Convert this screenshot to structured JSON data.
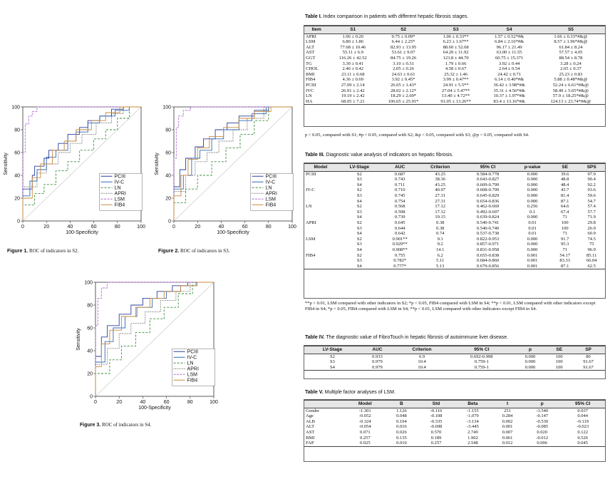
{
  "roc_common": {
    "ylabel": "Sensitivity",
    "xlabel": "100-Specificity",
    "xticks": [
      "0",
      "20",
      "40",
      "60",
      "80",
      "100"
    ],
    "yticks": [
      "0",
      "20",
      "40",
      "60",
      "80",
      "100"
    ],
    "legend": [
      "PCIII",
      "IV-C",
      "LN",
      "APRI",
      "LSM",
      "FIB4"
    ],
    "colors": {
      "PCIII": "#2c3e9e",
      "IV-C": "#2f6ab8",
      "LN": "#3a8e3a",
      "APRI": "#444444",
      "LSM": "#b368d6",
      "FIB4": "#c8893a"
    }
  },
  "figures": [
    {
      "label": "Figure 1.",
      "caption": "ROC of indicators in S2."
    },
    {
      "label": "Figure 2.",
      "caption": "ROC of indicators in S3."
    },
    {
      "label": "Figure 3.",
      "caption": "ROC of indicators in S4."
    }
  ],
  "chart_data": [
    {
      "type": "line",
      "title": "",
      "xlabel": "100-Specificity",
      "ylabel": "Sensitivity",
      "xlim": [
        0,
        100
      ],
      "ylim": [
        0,
        100
      ],
      "legend_position": "bottom-right",
      "series": [
        {
          "name": "PCIII",
          "x": [
            0,
            8,
            10,
            18,
            22,
            30,
            38,
            48,
            55,
            65,
            75,
            85,
            100
          ],
          "y": [
            0,
            28,
            40,
            48,
            55,
            62,
            68,
            76,
            82,
            88,
            92,
            98,
            100
          ]
        },
        {
          "name": "IV-C",
          "x": [
            0,
            6,
            12,
            20,
            28,
            38,
            45,
            55,
            65,
            78,
            90,
            100
          ],
          "y": [
            0,
            22,
            35,
            45,
            56,
            62,
            70,
            78,
            86,
            92,
            97,
            100
          ]
        },
        {
          "name": "LN",
          "x": [
            0,
            10,
            18,
            28,
            38,
            48,
            60,
            70,
            80,
            90,
            100
          ],
          "y": [
            0,
            14,
            24,
            32,
            44,
            52,
            62,
            72,
            80,
            90,
            100
          ]
        },
        {
          "name": "APRI",
          "x": [
            0,
            12,
            20,
            30,
            40,
            50,
            62,
            75,
            85,
            100
          ],
          "y": [
            0,
            30,
            42,
            50,
            60,
            68,
            76,
            86,
            94,
            100
          ]
        },
        {
          "name": "LSM",
          "x": [
            0,
            2,
            5,
            8,
            12,
            20,
            100
          ],
          "y": [
            0,
            60,
            85,
            92,
            96,
            100,
            100
          ]
        },
        {
          "name": "FIB4",
          "x": [
            0,
            8,
            15,
            25,
            35,
            45,
            58,
            70,
            82,
            100
          ],
          "y": [
            0,
            20,
            38,
            50,
            62,
            70,
            80,
            88,
            95,
            100
          ]
        }
      ]
    },
    {
      "type": "line",
      "title": "",
      "xlabel": "100-Specificity",
      "ylabel": "Sensitivity",
      "xlim": [
        0,
        100
      ],
      "ylim": [
        0,
        100
      ],
      "legend_position": "bottom-right",
      "series": [
        {
          "name": "PCIII",
          "x": [
            0,
            5,
            10,
            18,
            25,
            35,
            45,
            55,
            68,
            80,
            100
          ],
          "y": [
            0,
            30,
            45,
            55,
            65,
            72,
            80,
            86,
            92,
            97,
            100
          ]
        },
        {
          "name": "IV-C",
          "x": [
            0,
            8,
            15,
            22,
            32,
            42,
            55,
            66,
            78,
            100
          ],
          "y": [
            0,
            28,
            40,
            55,
            62,
            72,
            80,
            88,
            94,
            100
          ]
        },
        {
          "name": "LN",
          "x": [
            0,
            10,
            20,
            32,
            44,
            56,
            68,
            80,
            100
          ],
          "y": [
            0,
            16,
            28,
            40,
            52,
            64,
            76,
            88,
            100
          ]
        },
        {
          "name": "APRI",
          "x": [
            0,
            10,
            18,
            28,
            38,
            50,
            62,
            76,
            100
          ],
          "y": [
            0,
            26,
            40,
            52,
            60,
            70,
            80,
            90,
            100
          ]
        },
        {
          "name": "LSM",
          "x": [
            0,
            2,
            4,
            8,
            14,
            22,
            100
          ],
          "y": [
            0,
            55,
            82,
            92,
            97,
            100,
            100
          ]
        },
        {
          "name": "FIB4",
          "x": [
            0,
            6,
            12,
            20,
            30,
            42,
            55,
            68,
            82,
            100
          ],
          "y": [
            0,
            22,
            40,
            54,
            64,
            74,
            82,
            90,
            96,
            100
          ]
        }
      ]
    },
    {
      "type": "line",
      "title": "",
      "xlabel": "100-Specificity",
      "ylabel": "Sensitivity",
      "xlim": [
        0,
        100
      ],
      "ylim": [
        0,
        100
      ],
      "legend_position": "bottom-right",
      "series": [
        {
          "name": "PCIII",
          "x": [
            0,
            5,
            10,
            20,
            30,
            40,
            52,
            65,
            78,
            100
          ],
          "y": [
            0,
            35,
            52,
            62,
            72,
            80,
            86,
            92,
            97,
            100
          ]
        },
        {
          "name": "IV-C",
          "x": [
            0,
            8,
            15,
            25,
            35,
            48,
            60,
            72,
            85,
            100
          ],
          "y": [
            0,
            30,
            48,
            60,
            70,
            78,
            86,
            92,
            97,
            100
          ]
        },
        {
          "name": "LN",
          "x": [
            0,
            12,
            22,
            34,
            46,
            58,
            70,
            82,
            100
          ],
          "y": [
            0,
            20,
            32,
            44,
            56,
            68,
            78,
            90,
            100
          ]
        },
        {
          "name": "APRI",
          "x": [
            0,
            10,
            20,
            30,
            42,
            55,
            68,
            80,
            100
          ],
          "y": [
            0,
            28,
            42,
            55,
            64,
            74,
            84,
            92,
            100
          ]
        },
        {
          "name": "LSM",
          "x": [
            0,
            2,
            5,
            10,
            16,
            100
          ],
          "y": [
            0,
            62,
            86,
            95,
            100,
            100
          ]
        },
        {
          "name": "FIB4",
          "x": [
            0,
            5,
            12,
            22,
            34,
            46,
            58,
            72,
            86,
            100
          ],
          "y": [
            0,
            26,
            46,
            58,
            70,
            78,
            86,
            92,
            97,
            100
          ]
        }
      ]
    }
  ],
  "table1": {
    "label": "Table I.",
    "title": "Index comparison in patients with different hepatic fibrosis stages.",
    "headers": [
      "Item",
      "S1",
      "S2",
      "S3",
      "S4",
      "S5"
    ],
    "rows": [
      [
        "APRI",
        "1.06 ± 0.20",
        "0.75 ± 0.09*",
        "1.06 ± 0.33**",
        "1.57 ± 0.52*#&",
        "1.66 ± 0.33*#&@"
      ],
      [
        "LSM",
        "6.80 ± 1.86",
        "6.44 ± 2.25*",
        "6.23 ± 1.67**",
        "6.84 ± 2.16*#&",
        "8.57 ± 1.96*#&@"
      ],
      [
        "ALT",
        "77.68 ± 10.46",
        "82.93 ± 13.95",
        "88.60 ± 52.68",
        "96.17 ± 21.49",
        "61.84 ± 8.24"
      ],
      [
        "AST",
        "55.11 ± 6.9",
        "53.61 ± 9.07",
        "64.20 ± 11.92",
        "63.00 ± 11.55",
        "57.57 ± 4.05"
      ],
      [
        "GGT",
        "116.26 ± 42.52",
        "84.75 ± 19.26",
        "123.8 ± 44.70",
        "60.75 ± 15.371",
        "88.54 ± 8.78"
      ],
      [
        "TG",
        "3.30 ± 0.41",
        "3.10 ± 0.31",
        "1.79 ± 0.66",
        "3.92 ± 0.44",
        "3.28 ± 0.24"
      ],
      [
        "CHOL",
        "2.46 ± 0.42",
        "2.05 ± 0.26",
        "4.58 ± 0.67",
        "2.64 ± 0.54",
        "2.65 ± 0.37"
      ],
      [
        "BMI",
        "23.11 ± 0.68",
        "24.63 ± 0.61",
        "25.32 ± 1.46",
        "24.42 ± 0.71",
        "25.23 ± 0.83"
      ],
      [
        "FIB4",
        "4.36 ± 0.69",
        "3.92 ± 0.45*",
        "3.99 ± 0.47**",
        "6.14 ± 0.40*#&",
        "5.88 ± 0.48*#&@"
      ],
      [
        "PCIII",
        "27.09 ± 2.14",
        "26.65 ± 1.43*",
        "24.91 ± 5.5**",
        "36.42 ± 3.98*#&",
        "52.24 ± 6.61*#&@"
      ],
      [
        "IVC",
        "26.91 ± 2.42",
        "28.02 ± 2.12*",
        "27.04 ± 5.47**",
        "35.31 ± 4.56*#&",
        "58.49 ± 5.65*#&@"
      ],
      [
        "LN",
        "19.19 ± 2.42",
        "18.29 ± 2.69*",
        "13.40 ± 4.72**",
        "10.37 ± 1.97*#&",
        "57.9 ± 18.25*#&@"
      ],
      [
        "HA",
        "68.05 ± 7.21",
        "106.65 ± 25.91*",
        "91.05 ± 13.26**",
        "83.4 ± 13.16*#&",
        "124.13 ± 23.74*#&@"
      ]
    ],
    "note": "p < 0.05, compared with S1; #p < 0.05, compared with S2; &p < 0.05, compared with S3; @p < 0.05, compared with S4."
  },
  "table3": {
    "label": "Table III.",
    "title": "Diagnostic value analysis of indicators on hepatic fibrosis.",
    "headers": [
      "Model",
      "LV-Stage",
      "AUC",
      "Criterion",
      "95% CI",
      "p-value",
      "SE",
      "SPS"
    ],
    "rows": [
      [
        "PCIII",
        "S2",
        "0.687",
        "43.25",
        "0.584-0.778",
        "0.000",
        "39.6",
        "97.9"
      ],
      [
        "",
        "S3",
        "0.743",
        "38.36",
        "0.643-0.827",
        "0.000",
        "48.8",
        "90.4"
      ],
      [
        "",
        "S4",
        "0.711",
        "43.25",
        "0.609-0.799",
        "0.000",
        "48.4",
        "92.2"
      ],
      [
        "IV-C",
        "S2",
        "0.710",
        "40.97",
        "0.608-0.799",
        "0.000",
        "43.7",
        "93.6"
      ],
      [
        "",
        "S3",
        "0.745",
        "27.31",
        "0.645-0.829",
        "0.000",
        "81.4",
        "59.6"
      ],
      [
        "",
        "S4",
        "0.754",
        "27.31",
        "0.654-0.836",
        "0.000",
        "87.1",
        "54.7"
      ],
      [
        "LN",
        "S2",
        "0.568",
        "17.12",
        "0.462-0.669",
        "0.256",
        "64.6",
        "57.4"
      ],
      [
        "",
        "S3",
        "0.598",
        "17.12",
        "0.492-0.697",
        "0.1",
        "67.4",
        "57.7"
      ],
      [
        "",
        "S4",
        "0.739",
        "19.15",
        "0.639-0.824",
        "0.000",
        "71",
        "71.9"
      ],
      [
        "APRI",
        "S2",
        "0.645",
        "0.38",
        "0.540-0.741",
        "0.01",
        "100",
        "29.8"
      ],
      [
        "",
        "S3",
        "0.644",
        "0.38",
        "0.540-0.740",
        "0.01",
        "100",
        "26.9"
      ],
      [
        "",
        "S4",
        "0.642",
        "0.74",
        "0.537-0.738",
        "0.01",
        "71",
        "60.9"
      ],
      [
        "LSM",
        "S2",
        "0.901**",
        "9.1",
        "0.822-0.953",
        "0.000",
        "91.7",
        "74.5"
      ],
      [
        "",
        "S3",
        "0.929**",
        "9.2",
        "0.857-0.971",
        "0.000",
        "95.3",
        "75"
      ],
      [
        "",
        "S4",
        "0.908**",
        "14.1",
        "0.831-0.958",
        "0.000",
        "71",
        "96.9"
      ],
      [
        "FIB4",
        "S2",
        "0.755",
        "6.2",
        "0.655-0.838",
        "0.001",
        "54.17",
        "85.11"
      ],
      [
        "",
        "S3",
        "0.782*",
        "5.11",
        "0.684-0.860",
        "0.001",
        "83.33",
        "66.04"
      ],
      [
        "",
        "S4",
        "0.777*",
        "5.13",
        "0.679-0.856",
        "0.001",
        "87.1",
        "62.5"
      ]
    ],
    "note": "**p < 0.01, LSM compared with other indicators in S2; *p < 0.05, FIB4 compared with LSM in S4; **p < 0.01, LSM compared with other indicators except FIB4 in S4; *p < 0.05, FIB4 compared with LSM in S4; **p < 0.01, LSM compared with other indicators except FIB4 in S4."
  },
  "table4": {
    "label": "Table IV.",
    "title": "The diagnostic value of FibroTouch in hepatic fibrosis of autoimmune liver disease.",
    "headers": [
      "LV-Stage",
      "AUC",
      "Criterion",
      "95% CI",
      "p",
      "SE",
      "SP"
    ],
    "rows": [
      [
        "S2",
        "0.933",
        "6.9",
        "0.692-0.998",
        "0.000",
        "100",
        "80"
      ],
      [
        "S3",
        "0.979",
        "10.4",
        "0.759-1",
        "0.000",
        "100",
        "91.67"
      ],
      [
        "S4",
        "0.979",
        "10.4",
        "0.759-1",
        "0.000",
        "100",
        "91.67"
      ]
    ]
  },
  "table5": {
    "label": "Table V.",
    "title": "Multiple factor analyses of LSM.",
    "headers": [
      "",
      "Model",
      "B",
      "Std",
      "Beta",
      "t",
      "p",
      "95% CI"
    ],
    "rows": [
      [
        "Gender",
        "-1.301",
        "1.126",
        "-0.116",
        "-1.155",
        "251",
        "-3.540",
        "0.937"
      ],
      [
        "Age",
        "-0.052",
        "0.048",
        "-0.108",
        "-1.079",
        "0.284",
        "-0.147",
        "0.044"
      ],
      [
        "ALB",
        "-0.324",
        "0.104",
        "-0.335",
        "-3.134",
        "0.002",
        "-0.530",
        "-0.119"
      ],
      [
        "ALT",
        "-0.054",
        "0.016",
        "-0.698",
        "-3.445",
        "0.001",
        "-0.085",
        "-0.023"
      ],
      [
        "AST",
        "0.071",
        "0.026",
        "0.570",
        "2.749",
        "0.007",
        "0.020",
        "0.122"
      ],
      [
        "BMI",
        "0.257",
        "0.135",
        "0.189",
        "1.902",
        "0.061",
        "-0.012",
        "0.526"
      ],
      [
        "FAP",
        "0.025",
        "0.010",
        "0.257",
        "2.548",
        "0.012",
        "0.006",
        "0.045"
      ]
    ]
  }
}
